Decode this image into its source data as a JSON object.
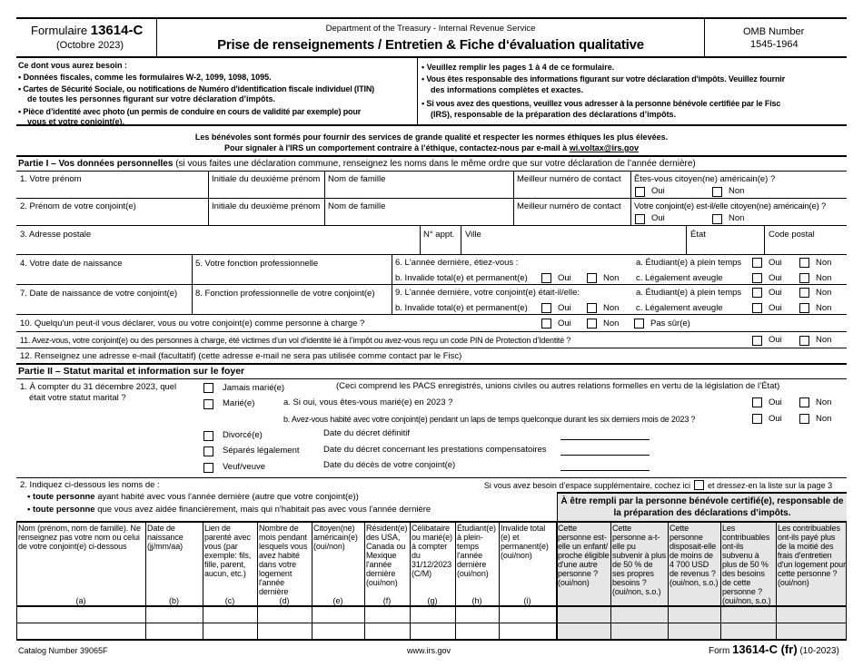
{
  "header": {
    "form_prefix": "Formulaire",
    "form_number": "13614-C",
    "edition": "(Octobre 2023)",
    "agency": "Department of the Treasury - Internal Revenue Service",
    "title": "Prise de renseignements / Entretien & Fiche d‘évaluation qualitative",
    "omb_label": "OMB Number",
    "omb_number": "1545-1964"
  },
  "needs": {
    "heading": "Ce dont vous aurez besoin :",
    "items": [
      "• Données fiscales, comme les formulaires W-2, 1099, 1098, 1095.",
      "• Cartes de Sécurité Sociale, ou notifications de Numéro d'identification fiscale individuel (ITIN)",
      "de toutes les personnes figurant sur votre déclaration d’impôts.",
      "• Pièce d’identité avec photo (un permis de conduire en cours de validité par exemple) pour",
      "vous et votre conjoint(e)."
    ]
  },
  "instructions": [
    "• Veuillez remplir les pages 1 à 4 de ce formulaire.",
    "• Vous êtes responsable des informations figurant sur votre déclaration d'impôts. Veuillez fournir",
    "des informations complètes et exactes.",
    "• Si vous avez des questions, veuillez vous adresser à la personne bénévole certifiée par le Fisc",
    "(IRS), responsable de la préparation des déclarations d’impôts."
  ],
  "ethics": {
    "line1": "Les bénévoles sont formés pour fournir des services de grande qualité et respecter les normes éthiques les plus élevées.",
    "line2": "Pour signaler à l'IRS un comportement contraire à l’éthique, contactez-nous par e-mail à",
    "email": "wi.voltax@irs.gov"
  },
  "part1": {
    "title": "Partie I – Vos données personnelles",
    "note": "(si vous faites une déclaration commune, renseignez les noms dans le même ordre que sur votre déclaration de l’année dernière)",
    "first_name": "1. Votre prénom",
    "middle_initial": "Initiale du deuxième prénom",
    "last_name": "Nom de famille",
    "phone": "Meilleur numéro de contact",
    "citizen_q": "Êtes-vous citoyen(ne) américain(e) ?",
    "spouse_first": "2. Prénom de votre conjoint(e)",
    "spouse_citizen_q": "Votre conjoint(e) est-il/elle citoyen(ne) américain(e) ?",
    "address": "3. Adresse postale",
    "apt": "N° appt.",
    "city": "Ville",
    "state": "État",
    "zip": "Code postal",
    "dob": "4. Votre date de naissance",
    "job": "5. Votre fonction professionnelle",
    "q6": "6. L'année dernière, étiez-vous :",
    "q_student": "a. Étudiant(e) à plein temps",
    "q_disabled": "b. Invalide total(e) et permanent(e)",
    "q_blind": "c. Légalement aveugle",
    "spouse_dob": "7. Date de naissance de votre conjoint(e)",
    "spouse_job": "8. Fonction professionnelle de votre conjoint(e)",
    "q9": "9. L'année dernière, votre conjoint(e) était-il/elle:",
    "q10": "10. Quelqu'un peut-il vous déclarer, vous ou votre conjoint(e) comme personne à charge ?",
    "not_sure": "Pas sûr(e)",
    "q11": "11. Avez-vous, votre conjoint(e) ou des personnes à charge, été victimes d’un vol d'identité lié à l’impôt ou avez-vous reçu un code PIN de Protection d’Identité ?",
    "q12": "12. Renseignez une adresse e-mail (facultatif) (cette adresse e-mail ne sera pas utilisée comme contact par le Fisc)",
    "yes": "Oui",
    "no": "Non"
  },
  "part2": {
    "title": "Partie II – Statut marital et information sur le foyer",
    "q1": "1. À compter du 31 décembre 2023, quel",
    "q1b": "était votre statut marital ?",
    "never": "Jamais marié(e)",
    "never_note": "(Ceci comprend les PACS enregistrés, unions civiles ou autres relations formelles en vertu de la législation de l’État)",
    "married": "Marié(e)",
    "married_a": "a. Si oui, vous êtes-vous marié(e) en 2023 ?",
    "married_b": "b. Avez-vous habité avec votre conjoint(e) pendant un laps de temps quelconque durant les six derniers mois de 2023 ?",
    "divorced": "Divorcé(e)",
    "divorced_date": "Date du décret définitif",
    "separated": "Séparés légalement",
    "separated_date": "Date du décret concernant les prestations compensatoires",
    "widowed": "Veuf/veuve",
    "widowed_date": "Date du décès de votre conjoint(e)",
    "q2": "2. Indiquez ci-dessous les noms de :",
    "q2_a_bold": "• toute personne",
    "q2_a": "ayant habité avec vous l'année dernière (autre que votre conjoint(e))",
    "q2_b_bold": "• toute personne",
    "q2_b": "que vous avez aidée financièrement, mais qui n'habitait pas avec vous l'année dernière",
    "extra_space": "Si vous avez besoin d’espace supplémentaire, cochez ici",
    "extra_space2": "et dressez-en la liste sur la page 3",
    "volunteer_box": "À être rempli par la personne bénévole certifié(e), responsable de la préparation des déclarations d’impôts."
  },
  "table": {
    "columns": [
      {
        "header": "Nom (prénom, nom de famille). Ne renseignez pas votre nom ou celui de votre conjoint(e) ci-dessous",
        "letter": "(a)"
      },
      {
        "header": "Date de naissance (jj/mm/aa)",
        "letter": "(b)"
      },
      {
        "header": "Lien de parenté avec vous (par exemple: fils, fille, parent, aucun, etc.)",
        "letter": "(c)"
      },
      {
        "header": "Nombre de mois pendant lesquels vous avez habité dans votre logement l'année dernière",
        "letter": "(d)"
      },
      {
        "header": "Citoyen(ne) américain(e) (oui/non)",
        "letter": "(e)"
      },
      {
        "header": "Résident(e) des USA, Canada ou Mexique l'année dernière (oui/non)",
        "letter": "(f)"
      },
      {
        "header": "Célibataire ou marié(e) à compter du 31/12/2023 (C/M)",
        "letter": "(g)"
      },
      {
        "header": "Étudiant(e) à plein-temps l'année dernière (oui/non)",
        "letter": "(h)"
      },
      {
        "header": "Invalide total (e) et permanent(e) (oui/non)",
        "letter": "(i)"
      },
      {
        "header": "Cette personne est-elle un enfant/ proche éligible d'une autre personne ? (oui/non)"
      },
      {
        "header": "Cette personne a-t-elle pu subvenir à plus de 50 % de ses propres besoins ? (oui/non, s.o.)"
      },
      {
        "header": "Cette personne disposait-elle de moins de 4 700 USD de revenus ? (oui/non, s.o.)"
      },
      {
        "header": "Les contribuables ont-ils subvenu à plus de 50 % des besoins de cette personne ? (oui/non, s.o.)"
      },
      {
        "header": "Les contribuables ont-ils payé plus de la moitié des frais d'entretien d'un logement pour cette personne ? (oui/non)"
      }
    ]
  },
  "footer": {
    "catalog": "Catalog Number 39065F",
    "url": "www.irs.gov",
    "form_prefix": "Form",
    "form_number": "13614-C (fr)",
    "edition": "(10-2023)"
  }
}
